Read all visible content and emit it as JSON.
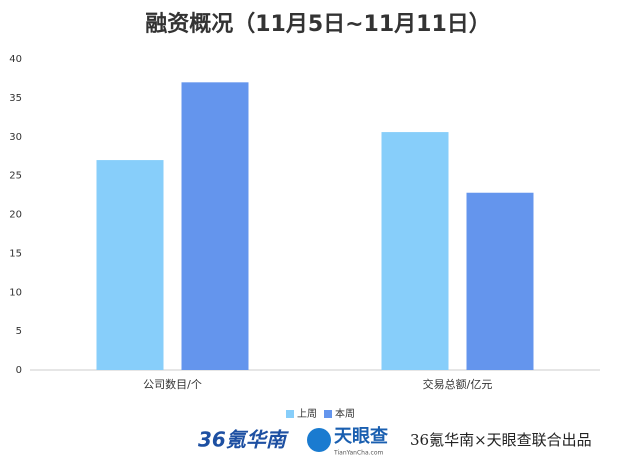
{
  "chart_data": {
    "type": "bar",
    "title": "融资概况（11月5日~11月11日）",
    "categories": [
      "公司数目/个",
      "交易总额/亿元"
    ],
    "series": [
      {
        "name": "上周",
        "color": "#87cefa",
        "values": [
          27,
          30.6
        ]
      },
      {
        "name": "本周",
        "color": "#6495ed",
        "values": [
          37,
          22.8
        ]
      }
    ],
    "ylim": [
      0,
      40
    ],
    "yticks": [
      0,
      5,
      10,
      15,
      20,
      25,
      30,
      35,
      40
    ],
    "grid": false,
    "legend": "bottom"
  },
  "footer": {
    "logo1": "36氪华南",
    "logo2": "天眼查",
    "logo2_sub": "TianYanCha.com",
    "credit": "36氪华南×天眼查联合出品"
  }
}
